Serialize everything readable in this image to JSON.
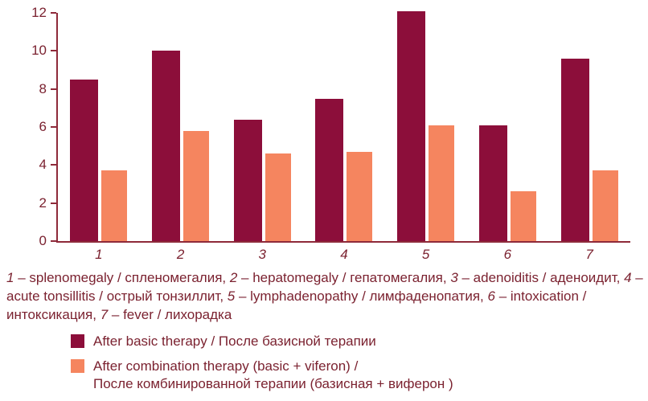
{
  "chart_data": {
    "type": "bar",
    "categories": [
      "1",
      "2",
      "3",
      "4",
      "5",
      "6",
      "7"
    ],
    "series": [
      {
        "name": "After basic therapy / После базисной терапии",
        "color": "#8C0E3A",
        "values": [
          8.5,
          10.0,
          6.4,
          7.5,
          12.1,
          6.1,
          9.6
        ]
      },
      {
        "name": "After combination therapy (basic + viferon) / После комбинированной терапии (базисная + виферон )",
        "color": "#F5855F",
        "values": [
          3.7,
          5.8,
          4.6,
          4.7,
          6.1,
          2.6,
          3.7
        ]
      }
    ],
    "title": "",
    "xlabel": "",
    "ylabel": "",
    "ylim": [
      0,
      12
    ],
    "yticks": [
      0,
      2,
      4,
      6,
      8,
      10,
      12
    ],
    "grid": false,
    "legend_position": "bottom-left"
  },
  "caption": {
    "separator": " – ",
    "items": [
      {
        "num": "1",
        "label": "splenomegaly / спленомегалия"
      },
      {
        "num": "2",
        "label": "hepatomegaly / гепатомегалия"
      },
      {
        "num": "3",
        "label": "adenoiditis / аденоидит"
      },
      {
        "num": "4",
        "label": "acute tonsillitis / острый тонзиллит"
      },
      {
        "num": "5",
        "label": "lymphadenopathy / лимфаденопатия"
      },
      {
        "num": "6",
        "label": "intoxication / интоксикация"
      },
      {
        "num": "7",
        "label": "fever / лихорадка"
      }
    ]
  },
  "legend": {
    "items": [
      {
        "label": "After basic therapy / После базисной терапии",
        "color": "#8C0E3A"
      },
      {
        "label": "After combination therapy (basic + viferon) /\nПосле комбинированной терапии (базисная + виферон )",
        "color": "#F5855F"
      }
    ]
  },
  "colors": {
    "axis": "#8E2A3A",
    "text": "#7B2230"
  }
}
